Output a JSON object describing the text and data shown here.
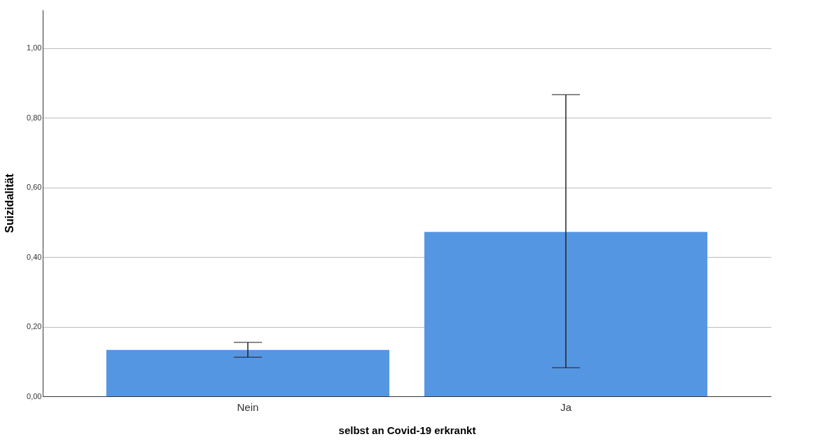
{
  "chart_data": {
    "type": "bar",
    "xlabel": "selbst an Covid-19 erkrankt",
    "ylabel": "Suizidalität",
    "categories": [
      "Nein",
      "Ja"
    ],
    "values": [
      0.133,
      0.472
    ],
    "errors": [
      [
        0.112,
        0.155
      ],
      [
        0.082,
        0.866
      ]
    ],
    "color": "#5596e2",
    "ylim": [
      0,
      1.11
    ],
    "yticks": [
      {
        "value": 0,
        "label": "0,00"
      },
      {
        "value": 0.2,
        "label": "0,20"
      },
      {
        "value": 0.4,
        "label": "0,40"
      },
      {
        "value": 0.6,
        "label": "0,60"
      },
      {
        "value": 0.8,
        "label": "0,80"
      },
      {
        "value": 1,
        "label": "1,00"
      }
    ],
    "grid": "y"
  }
}
